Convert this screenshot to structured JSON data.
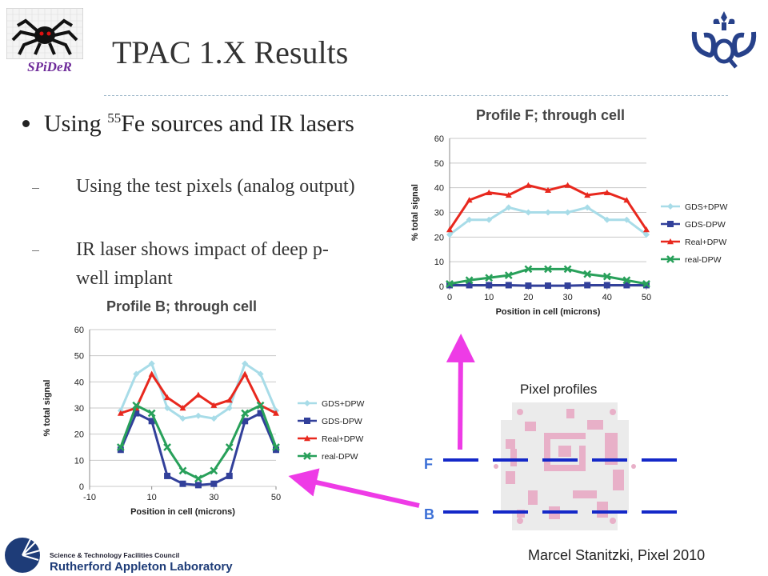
{
  "header": {
    "title": "TPAC 1.X Results",
    "logo_text": "SPiDeR"
  },
  "bullets": {
    "main_pre": "Using ",
    "main_sup": "55",
    "main_post": "Fe sources and IR lasers",
    "sub1": "Using the test pixels (analog output)",
    "sub2": "IR laser shows impact of deep p-well implant"
  },
  "diagram": {
    "label": "Pixel profiles",
    "row_f": "F",
    "row_b": "B"
  },
  "footer": {
    "author": "Marcel Stanitzki, Pixel 2010",
    "org_line1": "Science & Technology Facilities Council",
    "org_line2": "Rutherford Appleton Laboratory"
  },
  "colors": {
    "arrow": "#ee3be6",
    "dash_line": "#1428c8",
    "gds_dpw": "#a8dce8",
    "gds_nodpw": "#32409a",
    "real_dpw": "#e8281e",
    "real_nodpw": "#28a05a"
  },
  "chart_data": [
    {
      "id": "profileF",
      "type": "line",
      "title": "Profile F; through cell",
      "xlabel": "Position in cell (microns)",
      "ylabel": "% total signal",
      "xlim": [
        0,
        50
      ],
      "ylim": [
        0,
        60
      ],
      "xticks": [
        0,
        10,
        20,
        30,
        40,
        50
      ],
      "yticks": [
        0,
        10,
        20,
        30,
        40,
        50,
        60
      ],
      "grid": "horizontal",
      "legend": "right",
      "x": [
        0,
        5,
        10,
        15,
        20,
        25,
        30,
        35,
        40,
        45,
        50
      ],
      "series": [
        {
          "name": "GDS+DPW",
          "values": [
            21,
            27,
            27,
            32,
            30,
            30,
            30,
            32,
            27,
            27,
            21
          ],
          "color": "#a8dce8",
          "marker": "diamond"
        },
        {
          "name": "GDS-DPW",
          "values": [
            0.5,
            0.5,
            0.5,
            0.5,
            0.3,
            0.3,
            0.3,
            0.5,
            0.5,
            0.5,
            0.5
          ],
          "color": "#32409a",
          "marker": "square"
        },
        {
          "name": "Real+DPW",
          "values": [
            23,
            35,
            38,
            37,
            41,
            39,
            41,
            37,
            38,
            35,
            23
          ],
          "color": "#e8281e",
          "marker": "triangle"
        },
        {
          "name": "real-DPW",
          "values": [
            1,
            2.5,
            3.5,
            4.5,
            7,
            7,
            7,
            5,
            4,
            2.5,
            1
          ],
          "color": "#28a05a",
          "marker": "x"
        }
      ]
    },
    {
      "id": "profileB",
      "type": "line",
      "title": "Profile B; through cell",
      "xlabel": "Position in cell (microns)",
      "ylabel": "% total signal",
      "xlim": [
        -10,
        50
      ],
      "ylim": [
        0,
        60
      ],
      "xticks": [
        -10,
        10,
        30,
        50
      ],
      "yticks": [
        0,
        10,
        20,
        30,
        40,
        50,
        60
      ],
      "grid": "horizontal",
      "legend": "right",
      "x": [
        0,
        5,
        10,
        15,
        20,
        25,
        30,
        35,
        40,
        45,
        50
      ],
      "series": [
        {
          "name": "GDS+DPW",
          "values": [
            29,
            43,
            47,
            30,
            26,
            27,
            26,
            30,
            47,
            43,
            29
          ],
          "color": "#a8dce8",
          "marker": "diamond"
        },
        {
          "name": "GDS-DPW",
          "values": [
            14,
            28,
            25,
            4,
            1,
            0.5,
            1,
            4,
            25,
            28,
            14
          ],
          "color": "#32409a",
          "marker": "square"
        },
        {
          "name": "Real+DPW",
          "values": [
            28,
            30,
            43,
            34,
            30,
            35,
            31,
            33,
            43,
            31,
            28
          ],
          "color": "#e8281e",
          "marker": "triangle"
        },
        {
          "name": "real-DPW",
          "values": [
            15,
            31,
            28,
            15,
            6,
            3,
            6,
            15,
            28,
            31,
            15
          ],
          "color": "#28a05a",
          "marker": "x"
        }
      ]
    }
  ]
}
